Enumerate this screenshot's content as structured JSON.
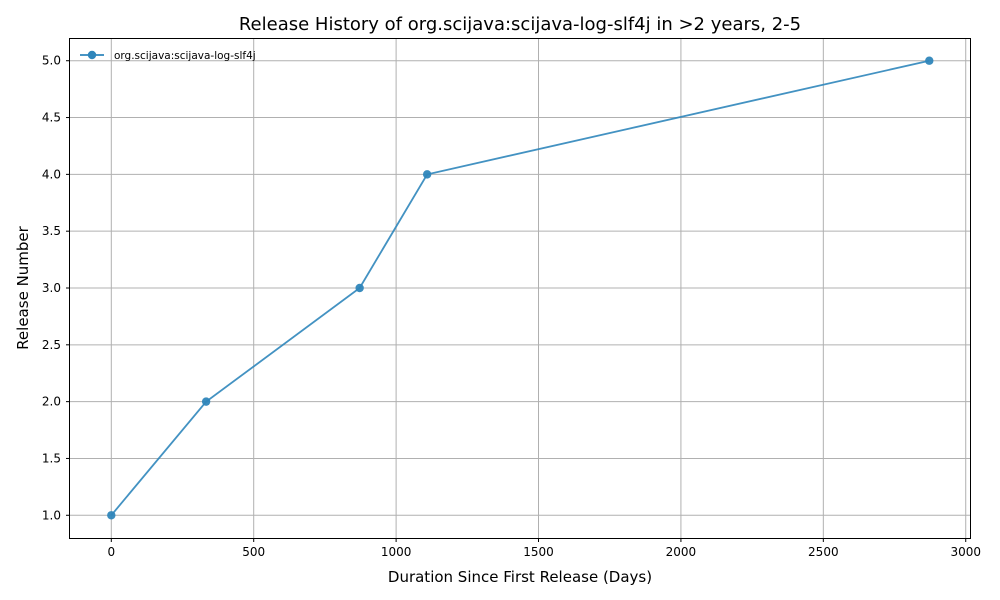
{
  "chart_data": {
    "type": "line",
    "title": "Release History of org.scijava:scijava-log-slf4j in >2 years, 2-5",
    "xlabel": "Duration Since First Release (Days)",
    "ylabel": "Release Number",
    "xlim": [
      -145,
      3015
    ],
    "ylim": [
      0.8,
      5.2
    ],
    "xticks": [
      0,
      500,
      1000,
      1500,
      2000,
      2500,
      3000
    ],
    "yticks": [
      1.0,
      1.5,
      2.0,
      2.5,
      3.0,
      3.5,
      4.0,
      4.5,
      5.0
    ],
    "xtick_labels": [
      "0",
      "500",
      "1000",
      "1500",
      "2000",
      "2500",
      "3000"
    ],
    "ytick_labels": [
      "1.0",
      "1.5",
      "2.0",
      "2.5",
      "3.0",
      "3.5",
      "4.0",
      "4.5",
      "5.0"
    ],
    "grid": true,
    "legend_position": "top-left",
    "series": [
      {
        "name": "org.scijava:scijava-log-slf4j",
        "color": "#2f86bb",
        "marker": "circle",
        "x": [
          0,
          333,
          872,
          1109,
          2872
        ],
        "y": [
          1,
          2,
          3,
          4,
          5
        ]
      }
    ]
  }
}
